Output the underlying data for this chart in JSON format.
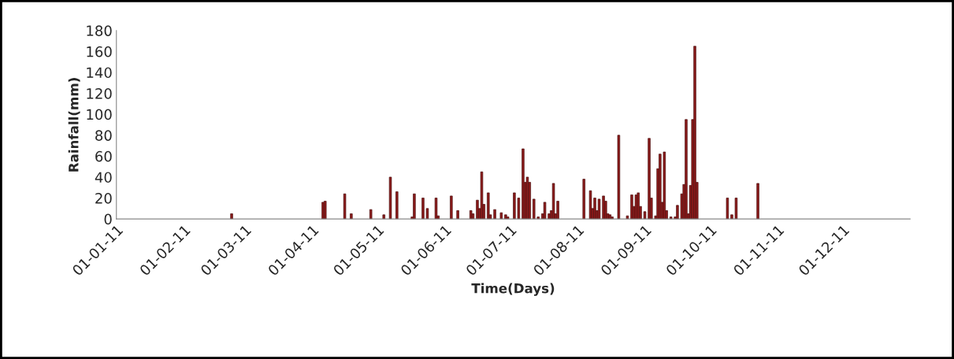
{
  "chart_data": {
    "type": "bar",
    "xlabel": "Time(Days)",
    "ylabel": "Rainfall(mm)",
    "x": [
      "2011-02-23",
      "2011-04-06",
      "2011-04-07",
      "2011-04-16",
      "2011-04-19",
      "2011-04-28",
      "2011-05-04",
      "2011-05-07",
      "2011-05-10",
      "2011-05-17",
      "2011-05-18",
      "2011-05-22",
      "2011-05-24",
      "2011-05-28",
      "2011-05-29",
      "2011-06-04",
      "2011-06-07",
      "2011-06-13",
      "2011-06-14",
      "2011-06-16",
      "2011-06-17",
      "2011-06-18",
      "2011-06-19",
      "2011-06-21",
      "2011-06-22",
      "2011-06-24",
      "2011-06-27",
      "2011-06-29",
      "2011-06-30",
      "2011-07-03",
      "2011-07-05",
      "2011-07-07",
      "2011-07-08",
      "2011-07-09",
      "2011-07-10",
      "2011-07-12",
      "2011-07-14",
      "2011-07-16",
      "2011-07-17",
      "2011-07-19",
      "2011-07-20",
      "2011-07-21",
      "2011-07-22",
      "2011-07-23",
      "2011-08-04",
      "2011-08-07",
      "2011-08-08",
      "2011-08-09",
      "2011-08-10",
      "2011-08-11",
      "2011-08-13",
      "2011-08-14",
      "2011-08-15",
      "2011-08-16",
      "2011-08-17",
      "2011-08-20",
      "2011-08-24",
      "2011-08-26",
      "2011-08-27",
      "2011-08-28",
      "2011-08-29",
      "2011-08-30",
      "2011-09-01",
      "2011-09-03",
      "2011-09-04",
      "2011-09-06",
      "2011-09-07",
      "2011-09-08",
      "2011-09-09",
      "2011-09-10",
      "2011-09-11",
      "2011-09-13",
      "2011-09-15",
      "2011-09-16",
      "2011-09-18",
      "2011-09-19",
      "2011-09-20",
      "2011-09-21",
      "2011-09-22",
      "2011-09-23",
      "2011-09-24",
      "2011-09-25",
      "2011-10-09",
      "2011-10-11",
      "2011-10-13",
      "2011-10-23"
    ],
    "values": [
      5,
      16,
      17,
      24,
      5,
      9,
      4,
      40,
      26,
      2,
      24,
      20,
      10,
      20,
      3,
      22,
      8,
      8,
      5,
      18,
      10,
      45,
      14,
      25,
      4,
      9,
      6,
      4,
      2,
      25,
      20,
      67,
      35,
      40,
      35,
      19,
      2,
      5,
      16,
      5,
      8,
      34,
      5,
      17,
      38,
      27,
      10,
      20,
      8,
      19,
      22,
      17,
      5,
      4,
      2,
      80,
      3,
      23,
      12,
      23,
      25,
      12,
      7,
      77,
      20,
      3,
      48,
      62,
      16,
      64,
      8,
      2,
      2,
      13,
      24,
      33,
      95,
      5,
      32,
      95,
      165,
      35,
      20,
      4,
      20,
      34
    ],
    "color": "#8b1a1a",
    "xlim": [
      "2011-01-01",
      "2012-01-01"
    ],
    "xticks": [
      {
        "value": "2011-01-01",
        "label": "01-01-11"
      },
      {
        "value": "2011-02-01",
        "label": "01-02-11"
      },
      {
        "value": "2011-03-01",
        "label": "01-03-11"
      },
      {
        "value": "2011-04-01",
        "label": "01-04-11"
      },
      {
        "value": "2011-05-01",
        "label": "01-05-11"
      },
      {
        "value": "2011-06-01",
        "label": "01-06-11"
      },
      {
        "value": "2011-07-01",
        "label": "01-07-11"
      },
      {
        "value": "2011-08-01",
        "label": "01-08-11"
      },
      {
        "value": "2011-09-01",
        "label": "01-09-11"
      },
      {
        "value": "2011-10-01",
        "label": "01-10-11"
      },
      {
        "value": "2011-11-01",
        "label": "01-11-11"
      },
      {
        "value": "2011-12-01",
        "label": "01-12-11"
      }
    ],
    "ylim": [
      0,
      180
    ],
    "yticks": [
      0,
      20,
      40,
      60,
      80,
      100,
      120,
      140,
      160,
      180
    ],
    "grid": false,
    "legend": false
  }
}
